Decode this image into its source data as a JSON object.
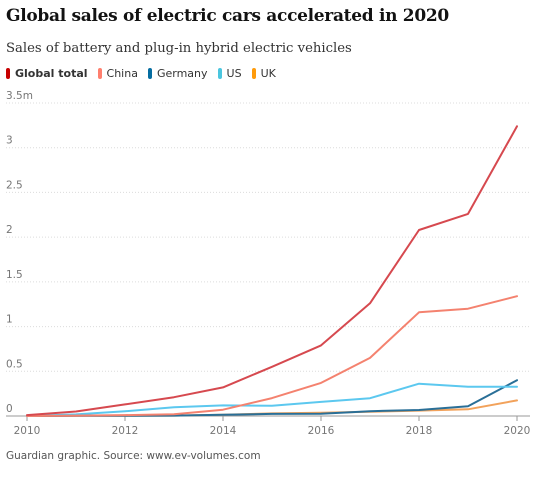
{
  "title": "Global sales of electric cars accelerated in 2020",
  "subtitle": "Sales of battery and plug-in hybrid electric vehicles",
  "source": "Guardian graphic. Source: www.ev-volumes.com",
  "legend": [
    {
      "label": "Global total",
      "color": "#c70000"
    },
    {
      "label": "China",
      "color": "#ff7f6e"
    },
    {
      "label": "Germany",
      "color": "#056da1"
    },
    {
      "label": "US",
      "color": "#4bc6df"
    },
    {
      "label": "UK",
      "color": "#ff9b0b"
    }
  ],
  "chart_data": {
    "type": "line",
    "title": "Global sales of electric cars accelerated in 2020",
    "subtitle": "Sales of battery and plug-in hybrid electric vehicles",
    "x": [
      2010,
      2011,
      2012,
      2013,
      2014,
      2015,
      2016,
      2017,
      2018,
      2019,
      2020
    ],
    "xticks": [
      2010,
      2012,
      2014,
      2016,
      2018,
      2020
    ],
    "yticks": [
      0,
      0.5,
      1,
      1.5,
      2,
      2.5,
      3
    ],
    "ytick_labels": [
      "0",
      "0.5",
      "1",
      "1.5",
      "2",
      "2.5",
      "3"
    ],
    "ytop_label": "3.5m",
    "ylim": [
      0,
      3.5
    ],
    "xlim": [
      2010,
      2020.3
    ],
    "grid": true,
    "series": [
      {
        "name": "Global total",
        "color": "#d6494f",
        "values": [
          0.01,
          0.05,
          0.13,
          0.21,
          0.32,
          0.55,
          0.79,
          1.26,
          2.08,
          2.26,
          3.24
        ]
      },
      {
        "name": "China",
        "color": "#f4826f",
        "values": [
          0.0,
          0.005,
          0.01,
          0.02,
          0.07,
          0.2,
          0.37,
          0.65,
          1.16,
          1.2,
          1.34
        ]
      },
      {
        "name": "Germany",
        "color": "#2a6f97",
        "values": [
          0.0,
          0.002,
          0.003,
          0.005,
          0.013,
          0.023,
          0.025,
          0.054,
          0.067,
          0.109,
          0.4
        ]
      },
      {
        "name": "US",
        "color": "#5cc8ef",
        "values": [
          0.0,
          0.018,
          0.053,
          0.097,
          0.119,
          0.115,
          0.158,
          0.199,
          0.361,
          0.327,
          0.328
        ]
      },
      {
        "name": "UK",
        "color": "#f2a25b",
        "values": [
          0.0,
          0.002,
          0.003,
          0.004,
          0.015,
          0.029,
          0.037,
          0.047,
          0.06,
          0.075,
          0.175
        ]
      }
    ]
  }
}
